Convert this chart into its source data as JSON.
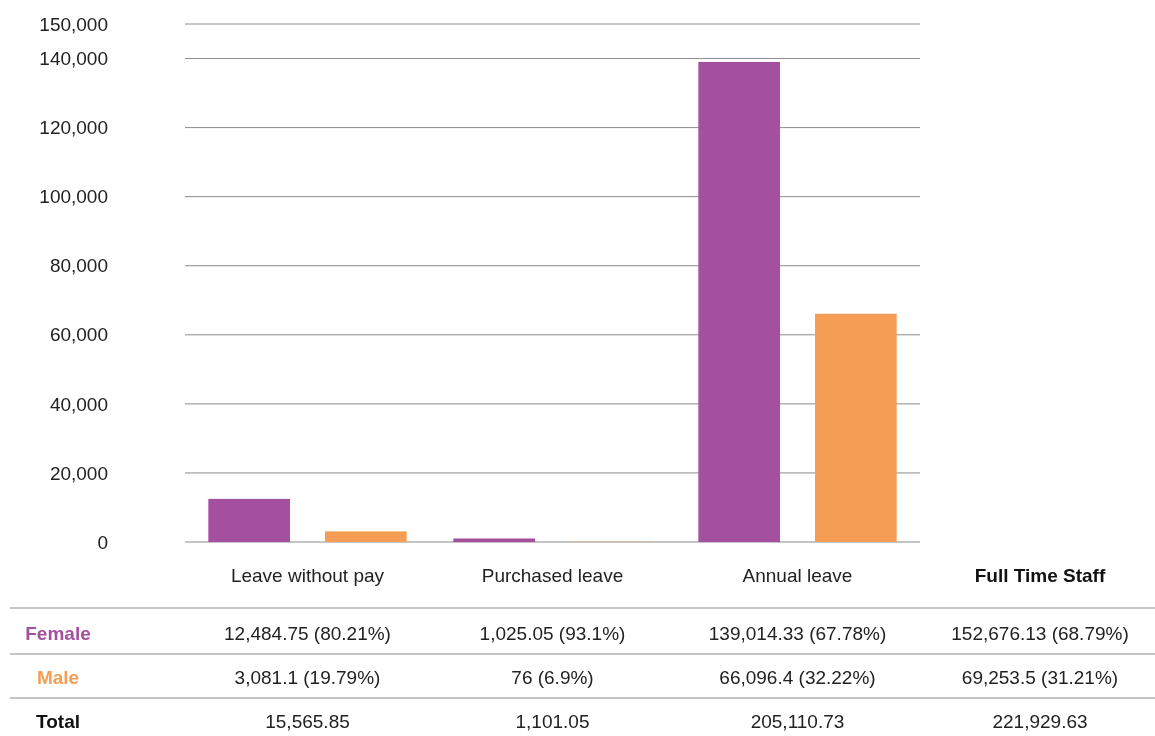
{
  "chart_data": {
    "type": "bar",
    "categories": [
      "Leave without pay",
      "Purchased leave",
      "Annual leave"
    ],
    "series": [
      {
        "name": "Female",
        "color": "#a5509f",
        "values": [
          12484.75,
          1025.05,
          139014.33
        ],
        "value_labels": [
          "12,484.75 (80.21%)",
          "1,025.05 (93.1%)",
          "139,014.33 (67.78%)"
        ]
      },
      {
        "name": "Male",
        "color": "#f69d55",
        "values": [
          3081.1,
          76,
          66096.4
        ],
        "value_labels": [
          "3,081.1 (19.79%)",
          "76 (6.9%)",
          "66,096.4 (32.22%)"
        ]
      }
    ],
    "ylim": [
      0,
      150000
    ],
    "yticks": [
      {
        "value": 0,
        "label": "0"
      },
      {
        "value": 20000,
        "label": "20,000"
      },
      {
        "value": 40000,
        "label": "40,000"
      },
      {
        "value": 60000,
        "label": "60,000"
      },
      {
        "value": 80000,
        "label": "80,000"
      },
      {
        "value": 100000,
        "label": "100,000"
      },
      {
        "value": 120000,
        "label": "120,000"
      },
      {
        "value": 140000,
        "label": "140,000"
      },
      {
        "value": 150000,
        "label": "150,000"
      }
    ],
    "grid": "y",
    "annotations": [
      "Full Time Staff",
      "152,676.13 (68.79%)",
      "69,253.5 (31.21%)",
      "Total",
      "15,565.85",
      "1,101.05",
      "205,110.73",
      "221,929.63"
    ]
  }
}
